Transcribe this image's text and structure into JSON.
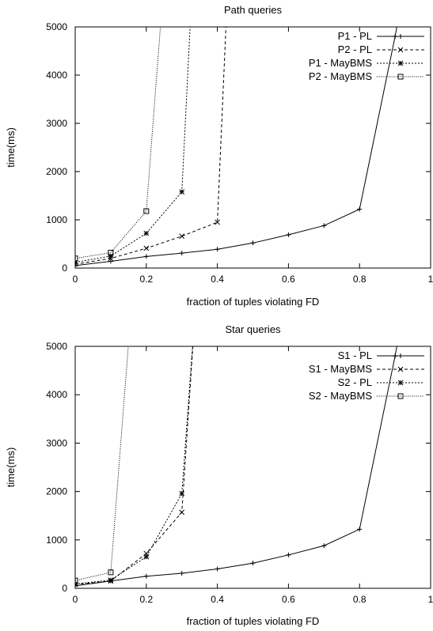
{
  "chart_data": [
    {
      "type": "line",
      "title": "Path queries",
      "xlabel": "fraction of tuples violating FD",
      "ylabel": "time(ms)",
      "xlim": [
        0,
        1
      ],
      "ylim": [
        0,
        5000
      ],
      "xticks": [
        0,
        0.2,
        0.4,
        0.6,
        0.8,
        1
      ],
      "xtick_labels": [
        "0",
        "0.2",
        "0.4",
        "0.6",
        "0.8",
        "1"
      ],
      "yticks": [
        0,
        1000,
        2000,
        3000,
        4000,
        5000
      ],
      "ytick_labels": [
        "0",
        "1000",
        "2000",
        "3000",
        "4000",
        "5000"
      ],
      "grid": false,
      "legend_position": "top-right",
      "series": [
        {
          "name": "P1 - PL",
          "style": "solid",
          "marker": "plus",
          "color": "#000000",
          "points": [
            [
              0,
              50
            ],
            [
              0.1,
              140
            ],
            [
              0.2,
              240
            ],
            [
              0.3,
              310
            ],
            [
              0.4,
              390
            ],
            [
              0.5,
              520
            ],
            [
              0.6,
              690
            ],
            [
              0.7,
              880
            ],
            [
              0.8,
              1220
            ],
            [
              0.9,
              4800
            ],
            [
              0.93,
              6000
            ]
          ]
        },
        {
          "name": "P2 - PL",
          "style": "dashed",
          "marker": "cross",
          "color": "#000000",
          "points": [
            [
              0,
              80
            ],
            [
              0.1,
              200
            ],
            [
              0.2,
              410
            ],
            [
              0.3,
              660
            ],
            [
              0.4,
              950
            ],
            [
              0.43,
              6000
            ]
          ]
        },
        {
          "name": "P1 - MayBMS",
          "style": "dotted",
          "marker": "star",
          "color": "#000000",
          "points": [
            [
              0,
              120
            ],
            [
              0.1,
              250
            ],
            [
              0.2,
              720
            ],
            [
              0.3,
              1580
            ],
            [
              0.33,
              6000
            ]
          ]
        },
        {
          "name": "P2 - MayBMS",
          "style": "densely-dotted",
          "marker": "square",
          "color": "#000000",
          "points": [
            [
              0,
              200
            ],
            [
              0.1,
              320
            ],
            [
              0.2,
              1180
            ],
            [
              0.25,
              6000
            ]
          ]
        }
      ]
    },
    {
      "type": "line",
      "title": "Star queries",
      "xlabel": "fraction of tuples violating FD",
      "ylabel": "time(ms)",
      "xlim": [
        0,
        1
      ],
      "ylim": [
        0,
        5000
      ],
      "xticks": [
        0,
        0.2,
        0.4,
        0.6,
        0.8,
        1
      ],
      "xtick_labels": [
        "0",
        "0.2",
        "0.4",
        "0.6",
        "0.8",
        "1"
      ],
      "yticks": [
        0,
        1000,
        2000,
        3000,
        4000,
        5000
      ],
      "ytick_labels": [
        "0",
        "1000",
        "2000",
        "3000",
        "4000",
        "5000"
      ],
      "grid": false,
      "legend_position": "top-right",
      "series": [
        {
          "name": "S1 - PL",
          "style": "solid",
          "marker": "plus",
          "color": "#000000",
          "points": [
            [
              0,
              50
            ],
            [
              0.1,
              150
            ],
            [
              0.2,
              250
            ],
            [
              0.3,
              310
            ],
            [
              0.4,
              400
            ],
            [
              0.5,
              520
            ],
            [
              0.6,
              690
            ],
            [
              0.7,
              880
            ],
            [
              0.8,
              1220
            ],
            [
              0.9,
              4800
            ],
            [
              0.93,
              6000
            ]
          ]
        },
        {
          "name": "S1 - MayBMS",
          "style": "dashed",
          "marker": "cross",
          "color": "#000000",
          "points": [
            [
              0,
              80
            ],
            [
              0.1,
              150
            ],
            [
              0.2,
              720
            ],
            [
              0.3,
              1570
            ],
            [
              0.34,
              6000
            ]
          ]
        },
        {
          "name": "S2 - PL",
          "style": "dotted",
          "marker": "star",
          "color": "#000000",
          "points": [
            [
              0,
              90
            ],
            [
              0.1,
              170
            ],
            [
              0.2,
              650
            ],
            [
              0.3,
              1960
            ],
            [
              0.34,
              6000
            ]
          ]
        },
        {
          "name": "S2 - MayBMS",
          "style": "densely-dotted",
          "marker": "square",
          "color": "#000000",
          "points": [
            [
              0,
              160
            ],
            [
              0.1,
              330
            ],
            [
              0.16,
              6000
            ]
          ]
        }
      ]
    }
  ]
}
